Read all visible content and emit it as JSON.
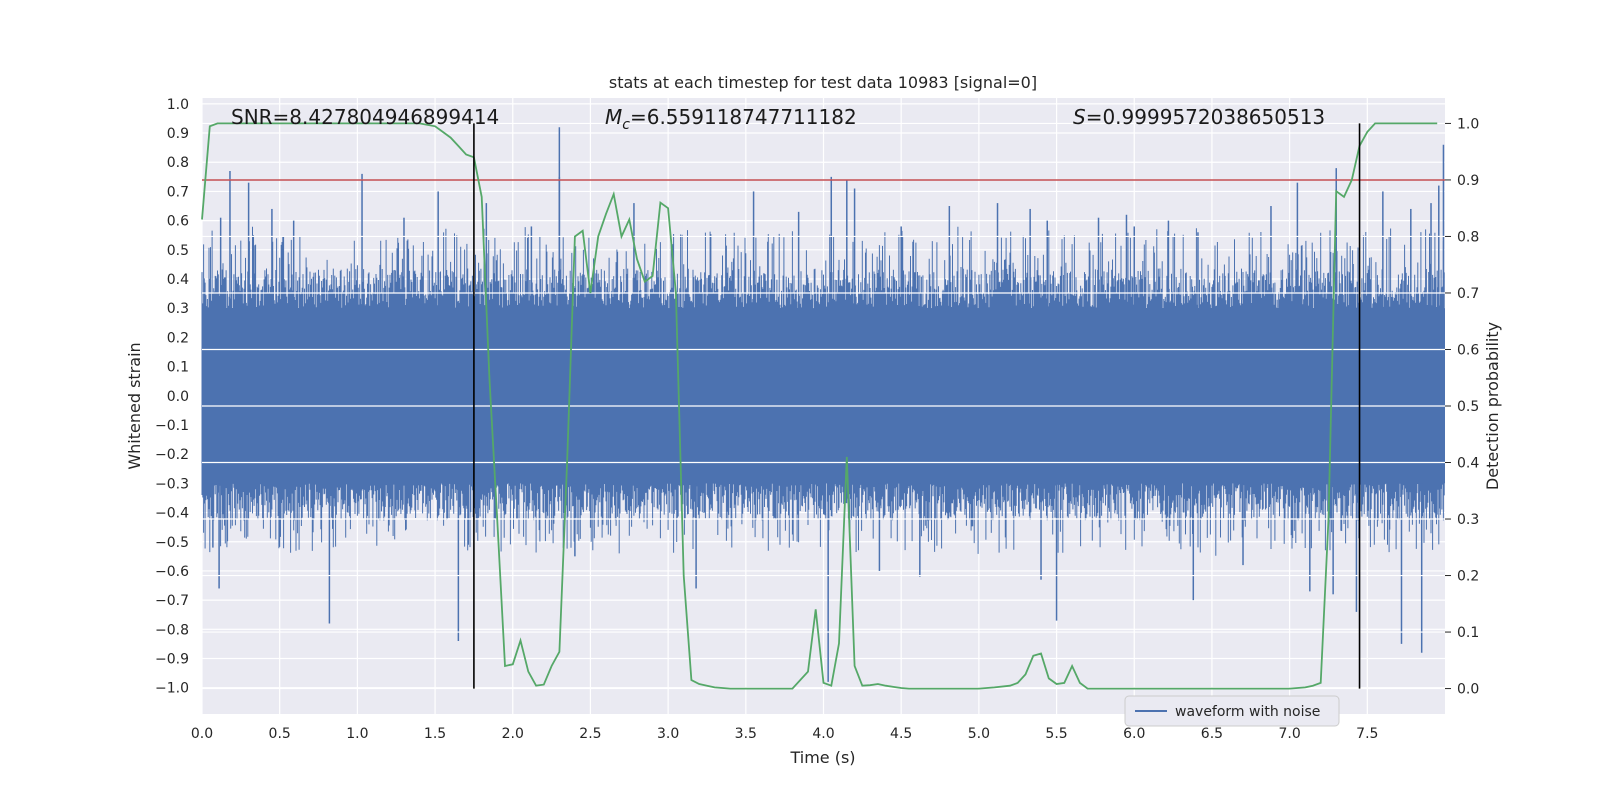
{
  "chart_data": {
    "type": "line",
    "title": "stats at each timestep for test data 10983 [signal=0]",
    "xlabel": "Time (s)",
    "ylabel": "Whitened strain",
    "y2label": "Detection probability",
    "xlim": [
      0.0,
      8.0
    ],
    "ylim": [
      -1.09,
      1.02
    ],
    "y2lim": [
      -0.045,
      1.045
    ],
    "xticks": [
      "0.0",
      "0.5",
      "1.0",
      "1.5",
      "2.0",
      "2.5",
      "3.0",
      "3.5",
      "4.0",
      "4.5",
      "5.0",
      "5.5",
      "6.0",
      "6.5",
      "7.0",
      "7.5"
    ],
    "yticks": [
      "1.0",
      "0.9",
      "0.8",
      "0.7",
      "0.6",
      "0.5",
      "0.4",
      "0.3",
      "0.2",
      "0.1",
      "0.0",
      "−0.1",
      "−0.2",
      "−0.3",
      "−0.4",
      "−0.5",
      "−0.6",
      "−0.7",
      "−0.8",
      "−0.9",
      "−1.0"
    ],
    "y2ticks": [
      "1.0",
      "0.9",
      "0.8",
      "0.7",
      "0.6",
      "0.5",
      "0.4",
      "0.3",
      "0.2",
      "0.1",
      "0.0"
    ],
    "grid": true,
    "legend": {
      "entries": [
        "waveform with noise"
      ],
      "position": "lower-right"
    },
    "annotations": {
      "snr": "SNR=8.427804946899414",
      "mc_symbol": "M",
      "mc_sub": "c",
      "mc_value": "=6.559118747711182",
      "s_symbol": "S",
      "s_value": "=0.9999572038650513"
    },
    "threshold_probability": 0.9,
    "vertical_lines_x": [
      1.75,
      7.45
    ],
    "series": [
      {
        "name": "waveform with noise",
        "axis": "left",
        "color": "#4c72b0",
        "description": "dense whitened noise strain, band roughly -0.42..0.45 with spikes",
        "spike_x": [
          0.07,
          0.11,
          0.12,
          0.18,
          0.3,
          0.33,
          0.45,
          0.59,
          0.82,
          1.03,
          1.3,
          1.52,
          1.65,
          1.83,
          2.12,
          2.3,
          2.3,
          2.4,
          2.78,
          3.18,
          3.55,
          3.84,
          4.03,
          4.05,
          4.15,
          4.2,
          4.36,
          4.5,
          4.62,
          4.81,
          5.12,
          5.33,
          5.4,
          5.44,
          5.5,
          5.77,
          5.95,
          6.0,
          6.22,
          6.38,
          6.41,
          6.7,
          6.88,
          7.05,
          7.13,
          7.28,
          7.3,
          7.43,
          7.6,
          7.72,
          7.78,
          7.85,
          7.91,
          7.96,
          7.99
        ],
        "spike_y": [
          -0.52,
          -0.66,
          0.61,
          0.77,
          0.73,
          0.55,
          0.64,
          0.6,
          -0.78,
          0.76,
          0.61,
          0.7,
          -0.84,
          0.66,
          0.58,
          0.92,
          0.75,
          -0.55,
          0.66,
          -0.66,
          0.7,
          0.63,
          -0.98,
          0.75,
          0.74,
          0.71,
          -0.6,
          0.58,
          -0.62,
          0.65,
          0.66,
          0.64,
          -0.63,
          0.6,
          -0.77,
          0.61,
          0.62,
          0.58,
          0.6,
          -0.7,
          0.56,
          -0.58,
          0.65,
          0.73,
          -0.67,
          -0.68,
          0.78,
          -0.74,
          0.7,
          -0.85,
          0.64,
          -0.88,
          0.66,
          0.72,
          0.86
        ]
      },
      {
        "name": "detection probability",
        "axis": "right",
        "color": "#55a868",
        "x": [
          0.0,
          0.05,
          0.1,
          0.2,
          0.3,
          0.4,
          0.6,
          0.8,
          1.0,
          1.2,
          1.4,
          1.5,
          1.55,
          1.6,
          1.65,
          1.7,
          1.75,
          1.8,
          1.85,
          1.9,
          1.95,
          2.0,
          2.05,
          2.1,
          2.15,
          2.2,
          2.25,
          2.3,
          2.35,
          2.4,
          2.45,
          2.5,
          2.55,
          2.6,
          2.65,
          2.7,
          2.75,
          2.8,
          2.85,
          2.9,
          2.95,
          3.0,
          3.05,
          3.1,
          3.15,
          3.2,
          3.25,
          3.3,
          3.4,
          3.5,
          3.6,
          3.7,
          3.8,
          3.9,
          3.95,
          4.0,
          4.05,
          4.1,
          4.15,
          4.2,
          4.25,
          4.3,
          4.35,
          4.4,
          4.45,
          4.5,
          4.55,
          4.6,
          4.65,
          4.7,
          4.8,
          4.9,
          5.0,
          5.1,
          5.2,
          5.25,
          5.3,
          5.35,
          5.4,
          5.45,
          5.5,
          5.55,
          5.6,
          5.65,
          5.7,
          5.75,
          5.8,
          5.85,
          5.9,
          6.0,
          6.2,
          6.4,
          6.6,
          6.8,
          7.0,
          7.1,
          7.15,
          7.2,
          7.25,
          7.3,
          7.35,
          7.4,
          7.45,
          7.5,
          7.55,
          7.6,
          7.7,
          7.8,
          7.9,
          7.95
        ],
        "y": [
          0.83,
          0.995,
          1.0,
          1.0,
          1.0,
          1.0,
          1.0,
          1.0,
          1.0,
          1.0,
          1.0,
          0.995,
          0.985,
          0.975,
          0.96,
          0.945,
          0.94,
          0.87,
          0.55,
          0.3,
          0.04,
          0.043,
          0.085,
          0.03,
          0.005,
          0.007,
          0.04,
          0.065,
          0.4,
          0.8,
          0.81,
          0.7,
          0.8,
          0.84,
          0.875,
          0.8,
          0.83,
          0.76,
          0.72,
          0.73,
          0.86,
          0.85,
          0.7,
          0.2,
          0.015,
          0.008,
          0.005,
          0.002,
          0.0,
          0.0,
          0.0,
          0.0,
          0.0,
          0.03,
          0.14,
          0.01,
          0.005,
          0.08,
          0.41,
          0.04,
          0.005,
          0.006,
          0.008,
          0.005,
          0.003,
          0.001,
          0.0,
          0.0,
          0.0,
          0.0,
          0.0,
          0.0,
          0.0,
          0.002,
          0.005,
          0.01,
          0.025,
          0.058,
          0.062,
          0.018,
          0.008,
          0.01,
          0.04,
          0.01,
          0.0,
          0.0,
          0.0,
          0.0,
          0.0,
          0.0,
          0.0,
          0.0,
          0.0,
          0.0,
          0.0,
          0.002,
          0.005,
          0.01,
          0.3,
          0.88,
          0.87,
          0.9,
          0.96,
          0.985,
          1.0,
          1.0,
          1.0,
          1.0,
          1.0,
          1.0
        ]
      }
    ]
  }
}
